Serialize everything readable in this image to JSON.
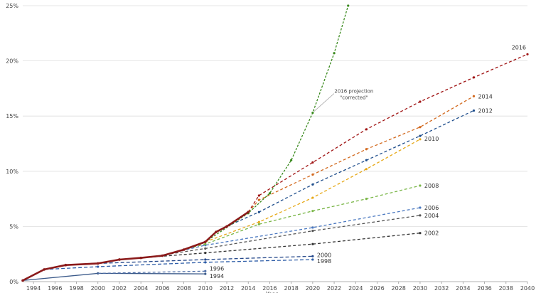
{
  "chart_data": {
    "type": "line",
    "xlabel": "Year",
    "ylabel": "",
    "xlim": [
      1993,
      2040
    ],
    "ylim": [
      0,
      25
    ],
    "x_ticks": [
      "1994",
      "1996",
      "1998",
      "2000",
      "2002",
      "2004",
      "2006",
      "2008",
      "2010",
      "2012",
      "2014",
      "2016",
      "2018",
      "2020",
      "2022",
      "2024",
      "2026",
      "2028",
      "2030",
      "2032",
      "2034",
      "2036",
      "2038",
      "2040"
    ],
    "y_ticks": [
      "0%",
      "5%",
      "10%",
      "15%",
      "20%",
      "25%"
    ],
    "grid": "horizontal",
    "annotation": {
      "lines": [
        "2016 projection",
        "\"corrected\""
      ],
      "points_to": {
        "x": 2020,
        "y": 15.3
      }
    },
    "actual": {
      "name": "",
      "color": "#8b1a1a",
      "x": [
        1993,
        1995,
        1997,
        2000,
        2002,
        2004,
        2006,
        2008,
        2010,
        2011,
        2012,
        2014
      ],
      "y": [
        0.1,
        1.1,
        1.5,
        1.65,
        2.0,
        2.15,
        2.35,
        2.9,
        3.6,
        4.5,
        5.0,
        6.3
      ]
    },
    "series": [
      {
        "name": "1994",
        "color": "#3b5a8a",
        "dash": "none",
        "x": [
          1993,
          2000,
          2010
        ],
        "y": [
          0.1,
          0.75,
          0.7
        ]
      },
      {
        "name": "1996",
        "color": "#4f6fa8",
        "dash": "4,3",
        "x": [
          2000,
          2010
        ],
        "y": [
          0.75,
          0.95
        ]
      },
      {
        "name": "1998",
        "color": "#2f5ea8",
        "dash": "5,3",
        "x": [
          1995,
          2000,
          2010,
          2020
        ],
        "y": [
          1.1,
          1.35,
          1.75,
          2.0
        ]
      },
      {
        "name": "2000",
        "color": "#24478a",
        "dash": "5,3",
        "x": [
          2000,
          2010,
          2020
        ],
        "y": [
          1.65,
          2.0,
          2.3
        ]
      },
      {
        "name": "2002",
        "color": "#333333",
        "dash": "4,3",
        "x": [
          2002,
          2010,
          2020,
          2030
        ],
        "y": [
          2.0,
          2.6,
          3.4,
          4.4
        ]
      },
      {
        "name": "2004",
        "color": "#555555",
        "dash": "4,3",
        "x": [
          2004,
          2010,
          2020,
          2030
        ],
        "y": [
          2.1,
          3.0,
          4.6,
          6.0
        ]
      },
      {
        "name": "2006",
        "color": "#4a78c0",
        "dash": "4,3",
        "x": [
          2006,
          2010,
          2020,
          2030
        ],
        "y": [
          2.4,
          3.3,
          4.9,
          6.7
        ]
      },
      {
        "name": "2008",
        "color": "#7ab648",
        "dash": "4,3",
        "x": [
          2008,
          2010,
          2015,
          2020,
          2025,
          2030
        ],
        "y": [
          2.9,
          3.4,
          5.2,
          6.4,
          7.5,
          8.7
        ]
      },
      {
        "name": "2010",
        "color": "#e6a817",
        "dash": "4,3",
        "x": [
          2010,
          2015,
          2020,
          2025,
          2030
        ],
        "y": [
          3.6,
          5.4,
          7.6,
          10.2,
          12.9
        ]
      },
      {
        "name": "2012",
        "color": "#1f4e8c",
        "dash": "4,3",
        "x": [
          2012,
          2015,
          2020,
          2025,
          2030,
          2035
        ],
        "y": [
          5.0,
          6.3,
          8.8,
          11.0,
          13.2,
          15.5
        ]
      },
      {
        "name": "2014",
        "color": "#d2691e",
        "dash": "4,3",
        "x": [
          2014,
          2015,
          2020,
          2025,
          2030,
          2035
        ],
        "y": [
          6.3,
          7.4,
          9.7,
          12.0,
          14.0,
          16.8
        ]
      },
      {
        "name": "2016",
        "color": "#a01414",
        "dash": "4,3",
        "x": [
          2014,
          2015,
          2020,
          2025,
          2030,
          2035,
          2040
        ],
        "y": [
          6.3,
          7.8,
          10.8,
          13.8,
          16.3,
          18.5,
          20.6
        ]
      },
      {
        "name": "",
        "color": "#3a8a1e",
        "dash": "3,2",
        "x": [
          2010,
          2014,
          2016,
          2018,
          2020,
          2022,
          2023.3
        ],
        "y": [
          3.6,
          6.2,
          8.0,
          11.0,
          15.3,
          20.7,
          25.0
        ]
      }
    ]
  }
}
